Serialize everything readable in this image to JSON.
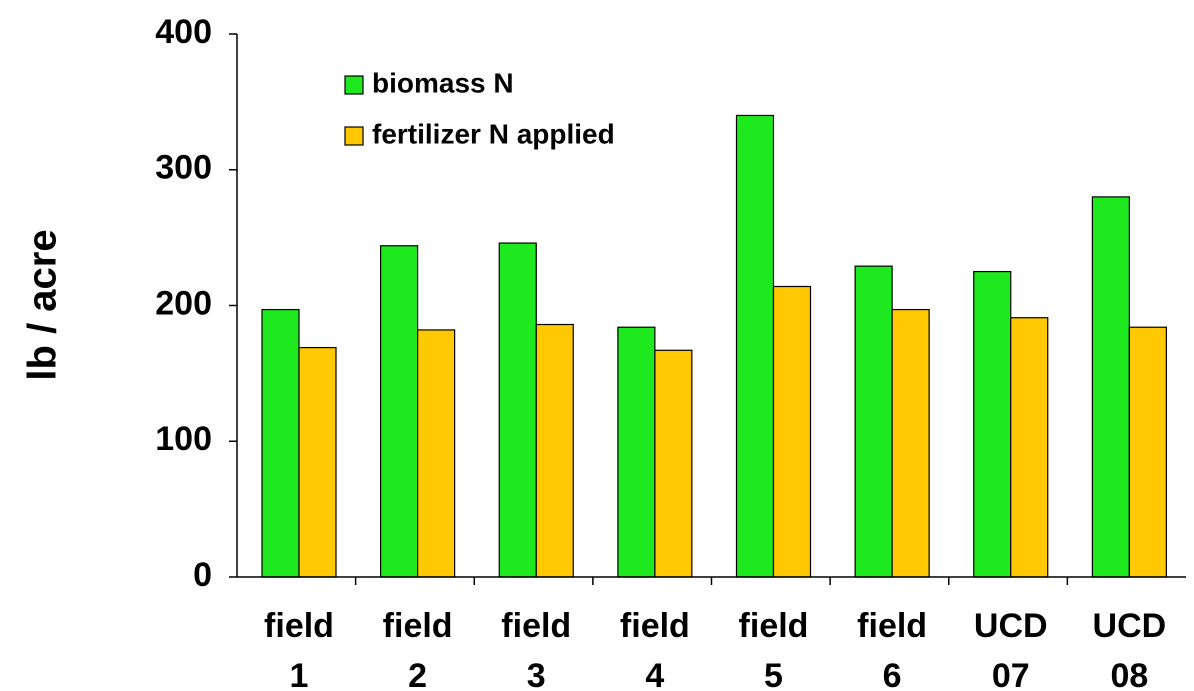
{
  "chart_data": {
    "type": "bar",
    "ylabel": "lb / acre",
    "categories": [
      [
        "field",
        "1"
      ],
      [
        "field",
        "2"
      ],
      [
        "field",
        "3"
      ],
      [
        "field",
        "4"
      ],
      [
        "field",
        "5"
      ],
      [
        "field",
        "6"
      ],
      [
        "UCD",
        "07"
      ],
      [
        "UCD",
        "08"
      ]
    ],
    "series": [
      {
        "name": "biomass N",
        "color": "#1ee81e",
        "values": [
          197,
          244,
          246,
          184,
          340,
          229,
          225,
          280
        ]
      },
      {
        "name": "fertilizer N applied",
        "color": "#ffc800",
        "values": [
          169,
          182,
          186,
          167,
          214,
          197,
          191,
          184
        ]
      }
    ],
    "ylim": [
      0,
      400
    ],
    "yticks": [
      0,
      100,
      200,
      300,
      400
    ],
    "legend": "upper left"
  }
}
